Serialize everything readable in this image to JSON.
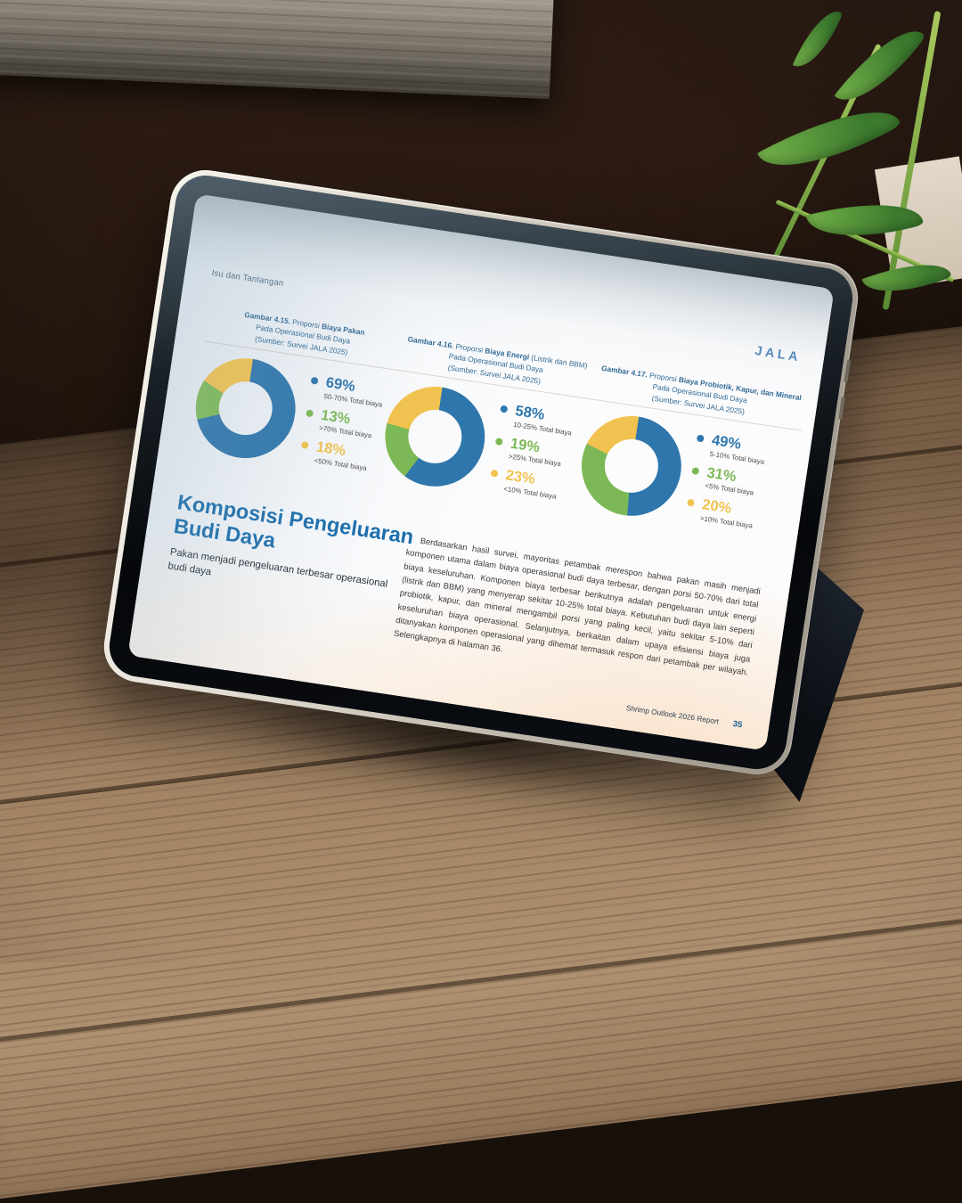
{
  "page": {
    "section_label": "Isu dan Tantangan",
    "logo_text": "JALA",
    "charts": [
      {
        "fig": "Gambar 4.15.",
        "cap_pre": " Proporsi ",
        "cap_bold": "Biaya Pakan",
        "cap_post": "",
        "cap_line2": "Pada Operasional Budi Daya",
        "cap_source": "(Sumber: Survei JALA 2025)",
        "legend": [
          {
            "value": "69%",
            "label": "50-70% Total biaya"
          },
          {
            "value": "13%",
            "label": ">70% Total biaya"
          },
          {
            "value": "18%",
            "label": "<50% Total biaya"
          }
        ]
      },
      {
        "fig": "Gambar 4.16.",
        "cap_pre": " Proporsi ",
        "cap_bold": "Biaya Energi",
        "cap_post": " (Listrik dan BBM)",
        "cap_line2": "Pada Operasional Budi Daya",
        "cap_source": "(Sumber: Survei JALA 2025)",
        "legend": [
          {
            "value": "58%",
            "label": "10-25% Total biaya"
          },
          {
            "value": "19%",
            "label": ">25% Total biaya"
          },
          {
            "value": "23%",
            "label": "<10% Total biaya"
          }
        ]
      },
      {
        "fig": "Gambar 4.17.",
        "cap_pre": " Proporsi ",
        "cap_bold": "Biaya Probiotik, Kapur, dan Mineral",
        "cap_post": " Pada Operasional Budi Daya",
        "cap_line2": "",
        "cap_source": "(Sumber: Survei JALA 2025)",
        "legend": [
          {
            "value": "49%",
            "label": "5-10% Total biaya"
          },
          {
            "value": "31%",
            "label": "<5% Total biaya"
          },
          {
            "value": "20%",
            "label": ">10% Total biaya"
          }
        ]
      }
    ],
    "title_line1": "Komposisi Pengeluaran",
    "title_line2": "Budi Daya",
    "subtitle": "Pakan menjadi pengeluaran terbesar operasional budi daya",
    "body": "Berdasarkan hasil survei, mayoritas petambak merespon bahwa pakan masih menjadi komponen utama dalam biaya operasional budi daya terbesar, dengan porsi 50-70% dari total biaya keseluruhan. Komponen biaya terbesar berikutnya adalah pengeluaran untuk energi (listrik dan BBM) yang menyerap sekitar 10-25% total biaya. Kebutuhan budi daya lain seperti probiotik, kapur, dan mineral mengambil porsi yang paling kecil, yaitu sekitar 5-10% dari keseluruhan biaya operasional. Selanjutnya, berkaitan dalam upaya efisiensi biaya juga ditanyakan komponen operasional yang dihemat termasuk respon dari petambak per wilayah. Selengkapnya di halaman 36.",
    "footer_report": "Shrimp Outlook 2026 Report",
    "footer_page": "35"
  },
  "colors": {
    "blue": "#2e76ac",
    "green": "#7cb956",
    "yellow": "#f1c24f",
    "title_blue": "#1c6fad"
  },
  "chart_data": [
    {
      "type": "pie",
      "donut": true,
      "title": "Gambar 4.15. Proporsi Biaya Pakan Pada Operasional Budi Daya",
      "source": "Survei JALA 2025",
      "labels": [
        "50-70% Total biaya",
        ">70% Total biaya",
        "<50% Total biaya"
      ],
      "values": [
        69,
        13,
        18
      ],
      "colors": [
        "#2e76ac",
        "#7cb956",
        "#f1c24f"
      ],
      "legend_position": "right"
    },
    {
      "type": "pie",
      "donut": true,
      "title": "Gambar 4.16. Proporsi Biaya Energi (Listrik dan BBM) Pada Operasional Budi Daya",
      "source": "Survei JALA 2025",
      "labels": [
        "10-25% Total biaya",
        ">25% Total biaya",
        "<10% Total biaya"
      ],
      "values": [
        58,
        19,
        23
      ],
      "colors": [
        "#2e76ac",
        "#7cb956",
        "#f1c24f"
      ],
      "legend_position": "right"
    },
    {
      "type": "pie",
      "donut": true,
      "title": "Gambar 4.17. Proporsi Biaya Probiotik, Kapur, dan Mineral Pada Operasional Budi Daya",
      "source": "Survei JALA 2025",
      "labels": [
        "5-10% Total biaya",
        "<5% Total biaya",
        ">10% Total biaya"
      ],
      "values": [
        49,
        31,
        20
      ],
      "colors": [
        "#2e76ac",
        "#7cb956",
        "#f1c24f"
      ],
      "legend_position": "right"
    }
  ]
}
